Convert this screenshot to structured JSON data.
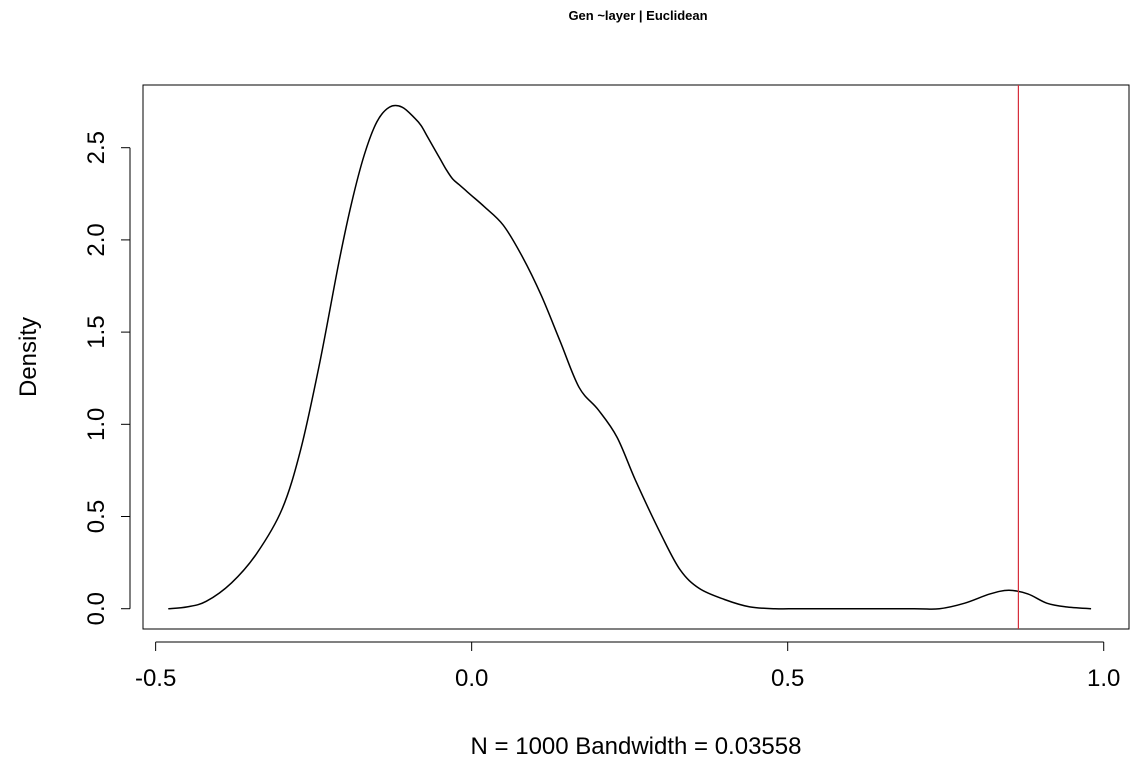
{
  "chart_data": {
    "type": "line",
    "title": "Gen ~layer | Euclidean",
    "xlabel": "N = 1000   Bandwidth = 0.03558",
    "ylabel": "Density",
    "xlim": [
      -0.52,
      1.04
    ],
    "ylim": [
      -0.11,
      2.84
    ],
    "x_ticks": [
      -0.5,
      0.0,
      0.5,
      1.0
    ],
    "x_tick_labels": [
      "-0.5",
      "0.0",
      "0.5",
      "1.0"
    ],
    "y_ticks": [
      0.0,
      0.5,
      1.0,
      1.5,
      2.0,
      2.5
    ],
    "y_tick_labels": [
      "0.0",
      "0.5",
      "1.0",
      "1.5",
      "2.0",
      "2.5"
    ],
    "grid": false,
    "series": [
      {
        "x": [
          -0.48,
          -0.45,
          -0.42,
          -0.38,
          -0.34,
          -0.3,
          -0.27,
          -0.24,
          -0.21,
          -0.19,
          -0.17,
          -0.15,
          -0.13,
          -0.11,
          -0.09,
          -0.08,
          -0.07,
          -0.06,
          -0.05,
          -0.04,
          -0.03,
          -0.02,
          -0.01,
          0.0,
          0.02,
          0.05,
          0.08,
          0.11,
          0.14,
          0.17,
          0.2,
          0.23,
          0.26,
          0.3,
          0.33,
          0.36,
          0.4,
          0.44,
          0.48,
          0.52,
          0.6,
          0.7,
          0.74,
          0.78,
          0.82,
          0.85,
          0.88,
          0.91,
          0.94,
          0.98
        ],
        "y": [
          0.0,
          0.01,
          0.04,
          0.14,
          0.3,
          0.54,
          0.87,
          1.34,
          1.88,
          2.2,
          2.46,
          2.64,
          2.72,
          2.72,
          2.66,
          2.62,
          2.56,
          2.5,
          2.44,
          2.38,
          2.33,
          2.3,
          2.27,
          2.24,
          2.18,
          2.08,
          1.91,
          1.7,
          1.45,
          1.2,
          1.08,
          0.93,
          0.69,
          0.4,
          0.21,
          0.11,
          0.05,
          0.01,
          0.0,
          0.0,
          0.0,
          0.0,
          0.0,
          0.03,
          0.08,
          0.1,
          0.08,
          0.03,
          0.01,
          0.0
        ],
        "color": "#000000"
      }
    ],
    "reference_line": {
      "orientation": "vertical",
      "x": 0.865,
      "color": "#d62d3a"
    }
  }
}
